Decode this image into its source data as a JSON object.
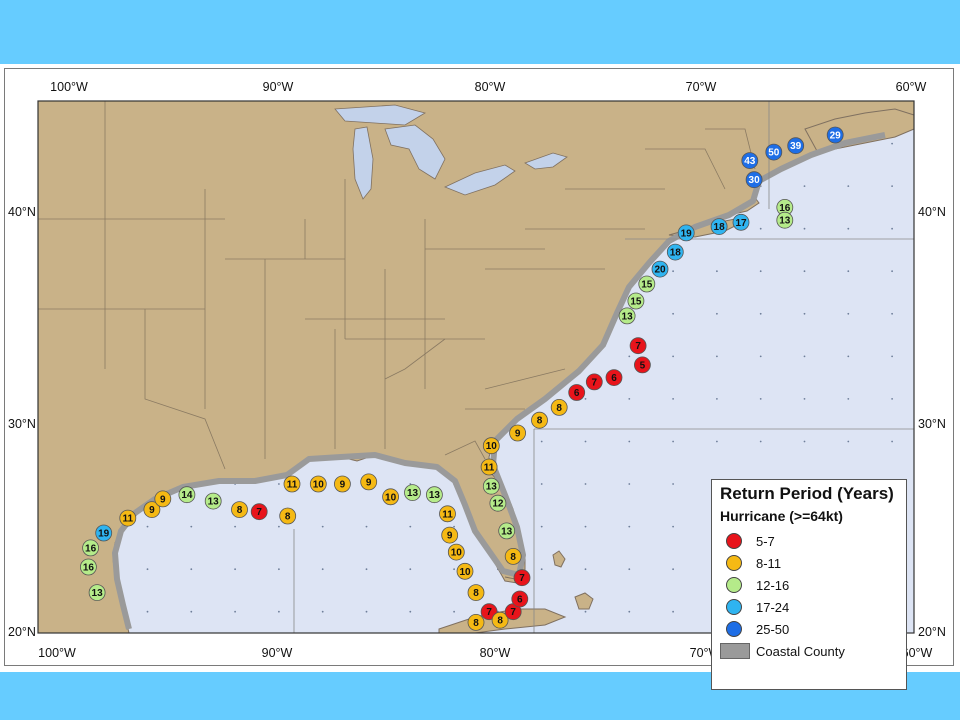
{
  "axes": {
    "lon_labels": [
      "100°W",
      "90°W",
      "80°W",
      "70°W",
      "60°W"
    ],
    "lat_labels": [
      "40°N",
      "30°N",
      "20°N"
    ]
  },
  "legend": {
    "title": "Return Period (Years)",
    "subtitle": "Hurricane (>=64kt)",
    "items": [
      {
        "label": "5-7",
        "color": "#e8141b"
      },
      {
        "label": "8-11",
        "color": "#f5b914"
      },
      {
        "label": "12-16",
        "color": "#b5eb8a"
      },
      {
        "label": "17-24",
        "color": "#2fb4f0"
      },
      {
        "label": "25-50",
        "color": "#1e6ee6"
      }
    ],
    "county_label": "Coastal County",
    "county_color": "#9a9a9a"
  },
  "colors": {
    "ocean": "#dde4f4",
    "land": "#c9b288",
    "lakes": "#c3d2ea",
    "border": "#8a7a62",
    "coastal": "#9a9a9a"
  },
  "markers": [
    {
      "v": "13",
      "lon": -97.3,
      "lat": 21.9
    },
    {
      "v": "16",
      "lon": -97.7,
      "lat": 23.1
    },
    {
      "v": "16",
      "lon": -97.6,
      "lat": 24.0
    },
    {
      "v": "19",
      "lon": -97.0,
      "lat": 24.7
    },
    {
      "v": "11",
      "lon": -95.9,
      "lat": 25.4
    },
    {
      "v": "9",
      "lon": -94.8,
      "lat": 25.8
    },
    {
      "v": "9",
      "lon": -94.3,
      "lat": 26.3
    },
    {
      "v": "14",
      "lon": -93.2,
      "lat": 26.5
    },
    {
      "v": "13",
      "lon": -92.0,
      "lat": 26.2
    },
    {
      "v": "8",
      "lon": -90.8,
      "lat": 25.8
    },
    {
      "v": "7",
      "lon": -89.9,
      "lat": 25.7
    },
    {
      "v": "8",
      "lon": -88.6,
      "lat": 25.5
    },
    {
      "v": "11",
      "lon": -88.4,
      "lat": 27.0
    },
    {
      "v": "10",
      "lon": -87.2,
      "lat": 27.0
    },
    {
      "v": "9",
      "lon": -86.1,
      "lat": 27.0
    },
    {
      "v": "9",
      "lon": -84.9,
      "lat": 27.1
    },
    {
      "v": "10",
      "lon": -83.9,
      "lat": 26.4
    },
    {
      "v": "13",
      "lon": -82.9,
      "lat": 26.6
    },
    {
      "v": "13",
      "lon": -81.9,
      "lat": 26.5
    },
    {
      "v": "11",
      "lon": -81.3,
      "lat": 25.6
    },
    {
      "v": "9",
      "lon": -81.2,
      "lat": 24.6
    },
    {
      "v": "10",
      "lon": -80.9,
      "lat": 23.8
    },
    {
      "v": "10",
      "lon": -80.5,
      "lat": 22.9
    },
    {
      "v": "8",
      "lon": -80.0,
      "lat": 21.9
    },
    {
      "v": "7",
      "lon": -79.4,
      "lat": 21.0
    },
    {
      "v": "8",
      "lon": -80.0,
      "lat": 20.5
    },
    {
      "v": "8",
      "lon": -78.9,
      "lat": 20.6
    },
    {
      "v": "7",
      "lon": -78.3,
      "lat": 21.0
    },
    {
      "v": "6",
      "lon": -78.0,
      "lat": 21.6
    },
    {
      "v": "7",
      "lon": -77.9,
      "lat": 22.6
    },
    {
      "v": "8",
      "lon": -78.3,
      "lat": 23.6
    },
    {
      "v": "13",
      "lon": -78.6,
      "lat": 24.8
    },
    {
      "v": "12",
      "lon": -79.0,
      "lat": 26.1
    },
    {
      "v": "13",
      "lon": -79.3,
      "lat": 26.9
    },
    {
      "v": "11",
      "lon": -79.4,
      "lat": 27.8
    },
    {
      "v": "10",
      "lon": -79.3,
      "lat": 28.8
    },
    {
      "v": "9",
      "lon": -78.1,
      "lat": 29.4
    },
    {
      "v": "8",
      "lon": -77.1,
      "lat": 30.0
    },
    {
      "v": "8",
      "lon": -76.2,
      "lat": 30.6
    },
    {
      "v": "6",
      "lon": -75.4,
      "lat": 31.3
    },
    {
      "v": "7",
      "lon": -74.6,
      "lat": 31.8
    },
    {
      "v": "6",
      "lon": -73.7,
      "lat": 32.0
    },
    {
      "v": "5",
      "lon": -72.4,
      "lat": 32.6
    },
    {
      "v": "7",
      "lon": -72.6,
      "lat": 33.5
    },
    {
      "v": "13",
      "lon": -73.1,
      "lat": 34.9
    },
    {
      "v": "15",
      "lon": -72.7,
      "lat": 35.6
    },
    {
      "v": "15",
      "lon": -72.2,
      "lat": 36.4
    },
    {
      "v": "20",
      "lon": -71.6,
      "lat": 37.1
    },
    {
      "v": "18",
      "lon": -70.9,
      "lat": 37.9
    },
    {
      "v": "19",
      "lon": -70.4,
      "lat": 38.8
    },
    {
      "v": "18",
      "lon": -68.9,
      "lat": 39.1
    },
    {
      "v": "17",
      "lon": -67.9,
      "lat": 39.3
    },
    {
      "v": "16",
      "lon": -65.9,
      "lat": 40.0
    },
    {
      "v": "13",
      "lon": -65.9,
      "lat": 39.4
    },
    {
      "v": "30",
      "lon": -67.3,
      "lat": 41.3
    },
    {
      "v": "43",
      "lon": -67.5,
      "lat": 42.2
    },
    {
      "v": "50",
      "lon": -66.4,
      "lat": 42.6
    },
    {
      "v": "39",
      "lon": -65.4,
      "lat": 42.9
    },
    {
      "v": "29",
      "lon": -63.6,
      "lat": 43.4
    }
  ]
}
